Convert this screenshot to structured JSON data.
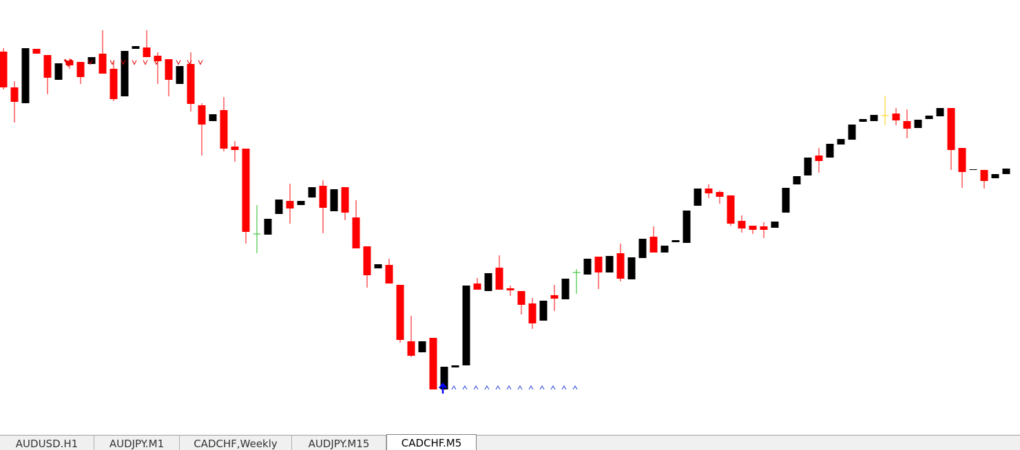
{
  "chart_data": {
    "type": "candlestick",
    "open": [
      525,
      473,
      450,
      529,
      520,
      484,
      512,
      510,
      507,
      522,
      500,
      460,
      529,
      531,
      519,
      514,
      478,
      507,
      447,
      424,
      440,
      387,
      384,
      260,
      259,
      289,
      308,
      302,
      313,
      330,
      293,
      328,
      284,
      242,
      210,
      215,
      186,
      104,
      88,
      109,
      34,
      66,
      69,
      188,
      177,
      211,
      181,
      177,
      159,
      134,
      171,
      165,
      204,
      201,
      227,
      204,
      232,
      194,
      225,
      256,
      233,
      248,
      247,
      301,
      326,
      321,
      316,
      279,
      272,
      271,
      269,
      291,
      332,
      345,
      374,
      371,
      390,
      397,
      423,
      424,
      432,
      435,
      424,
      414,
      427,
      431,
      443,
      385,
      353,
      353,
      341,
      347
    ],
    "high": [
      530,
      482,
      530,
      529,
      520,
      508,
      515,
      510,
      517,
      556,
      512,
      526,
      533,
      556,
      524,
      514,
      504,
      524,
      450,
      434,
      459,
      395,
      384,
      302,
      282,
      310,
      333,
      308,
      328,
      338,
      325,
      328,
      309,
      242,
      216,
      224,
      186,
      141,
      104,
      109,
      67,
      69,
      185,
      196,
      203,
      229,
      185,
      177,
      167,
      163,
      186,
      195,
      209,
      224,
      227,
      228,
      246,
      226,
      253,
      271,
      243,
      251,
      294,
      326,
      332,
      323,
      316,
      287,
      272,
      277,
      278,
      327,
      344,
      371,
      385,
      391,
      398,
      419,
      427,
      433,
      461,
      443,
      441,
      426,
      432,
      443,
      443,
      385,
      354,
      353,
      347,
      355
    ],
    "low": [
      470,
      422,
      450,
      522,
      463,
      484,
      500,
      478,
      507,
      493,
      453,
      460,
      529,
      517,
      478,
      460,
      478,
      438,
      374,
      424,
      380,
      365,
      246,
      232,
      259,
      289,
      275,
      302,
      313,
      261,
      293,
      280,
      239,
      182,
      210,
      188,
      102,
      81,
      88,
      34,
      34,
      66,
      69,
      179,
      177,
      179,
      170,
      143,
      122,
      134,
      148,
      165,
      173,
      201,
      180,
      204,
      191,
      194,
      225,
      233,
      233,
      248,
      247,
      301,
      312,
      304,
      272,
      262,
      260,
      254,
      269,
      291,
      332,
      345,
      349,
      371,
      390,
      397,
      423,
      424,
      418,
      418,
      399,
      414,
      427,
      431,
      353,
      327,
      353,
      326,
      341,
      347
    ],
    "close": [
      473,
      452,
      530,
      522,
      487,
      508,
      505,
      488,
      517,
      493,
      456,
      526,
      533,
      517,
      511,
      484,
      504,
      449,
      419,
      434,
      384,
      382,
      263,
      260,
      282,
      310,
      297,
      308,
      328,
      298,
      325,
      291,
      239,
      200,
      216,
      188,
      106,
      83,
      104,
      34,
      67,
      69,
      185,
      179,
      203,
      179,
      178,
      157,
      130,
      163,
      166,
      195,
      204,
      224,
      204,
      228,
      195,
      226,
      253,
      233,
      243,
      251,
      294,
      326,
      319,
      314,
      275,
      268,
      266,
      266,
      278,
      327,
      344,
      371,
      366,
      391,
      398,
      419,
      427,
      433,
      432,
      425,
      413,
      426,
      432,
      443,
      382,
      350,
      354,
      337,
      347,
      355
    ],
    "ylim": [
      0,
      600
    ],
    "up_color": "#000000",
    "down_color": "#ff0000",
    "doji_colors": [
      "#22bb22",
      "#22bb22",
      "#ffcc00"
    ]
  },
  "tabs": [
    "AUDUSD.H1",
    "AUDJPY.M1",
    "CADCHF,Weekly",
    "AUDJPY.M15",
    "CADCHF.M5"
  ],
  "active_tab": 4
}
